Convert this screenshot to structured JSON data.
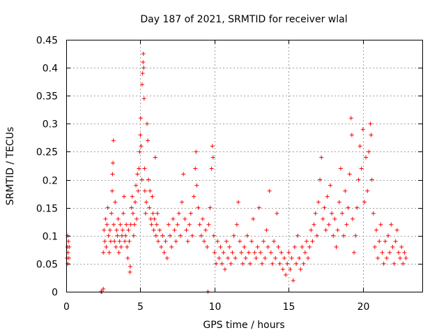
{
  "chart_data": {
    "type": "scatter",
    "title": "Day 187 of 2021, SRMTID for receiver wlal",
    "xlabel": "GPS time / hours",
    "ylabel": "SRMTID / TECUs",
    "xlim": [
      0,
      24
    ],
    "ylim": [
      0,
      0.45
    ],
    "xticks": [
      0,
      5,
      10,
      15,
      20
    ],
    "xtick_labels": [
      "0",
      "5",
      "10",
      "15",
      "20"
    ],
    "yticks": [
      0,
      0.05,
      0.1,
      0.15,
      0.2,
      0.25,
      0.3,
      0.35,
      0.4,
      0.45
    ],
    "ytick_labels": [
      "0",
      "0.05",
      "0.1",
      "0.15",
      "0.2",
      "0.25",
      "0.3",
      "0.35",
      "0.4",
      "0.45"
    ],
    "grid": true,
    "marker": "+",
    "color": "#ff0000",
    "series": [
      {
        "name": "SRMTID",
        "points": [
          [
            0.05,
            0.06
          ],
          [
            0.08,
            0.08
          ],
          [
            0.1,
            0.1
          ],
          [
            0.12,
            0.07
          ],
          [
            0.15,
            0.09
          ],
          [
            0.18,
            0.06
          ],
          [
            0.2,
            0.08
          ],
          [
            0.1,
            0.05
          ],
          [
            2.35,
            0.0
          ],
          [
            2.4,
            0.0
          ],
          [
            2.5,
            0.005
          ],
          [
            2.5,
            0.07
          ],
          [
            2.55,
            0.11
          ],
          [
            2.6,
            0.09
          ],
          [
            2.65,
            0.13
          ],
          [
            2.7,
            0.08
          ],
          [
            2.75,
            0.12
          ],
          [
            2.8,
            0.15
          ],
          [
            2.85,
            0.1
          ],
          [
            2.9,
            0.07
          ],
          [
            2.95,
            0.11
          ],
          [
            3.0,
            0.09
          ],
          [
            3.05,
            0.14
          ],
          [
            3.1,
            0.18
          ],
          [
            3.12,
            0.21
          ],
          [
            3.15,
            0.23
          ],
          [
            3.18,
            0.27
          ],
          [
            3.2,
            0.12
          ],
          [
            3.25,
            0.09
          ],
          [
            3.3,
            0.16
          ],
          [
            3.35,
            0.08
          ],
          [
            3.4,
            0.11
          ],
          [
            3.45,
            0.1
          ],
          [
            3.5,
            0.13
          ],
          [
            3.55,
            0.07
          ],
          [
            3.6,
            0.09
          ],
          [
            3.65,
            0.12
          ],
          [
            3.7,
            0.08
          ],
          [
            3.75,
            0.1
          ],
          [
            3.8,
            0.11
          ],
          [
            3.85,
            0.14
          ],
          [
            3.9,
            0.17
          ],
          [
            3.95,
            0.09
          ],
          [
            4.0,
            0.1
          ],
          [
            4.05,
            0.12
          ],
          [
            4.1,
            0.08
          ],
          [
            4.15,
            0.06
          ],
          [
            4.2,
            0.11
          ],
          [
            4.25,
            0.09
          ],
          [
            4.3,
            0.035
          ],
          [
            4.32,
            0.045
          ],
          [
            4.35,
            0.12
          ],
          [
            4.4,
            0.15
          ],
          [
            4.45,
            0.17
          ],
          [
            4.5,
            0.14
          ],
          [
            4.55,
            0.1
          ],
          [
            4.6,
            0.12
          ],
          [
            4.65,
            0.16
          ],
          [
            4.7,
            0.19
          ],
          [
            4.75,
            0.13
          ],
          [
            4.8,
            0.21
          ],
          [
            4.85,
            0.18
          ],
          [
            4.9,
            0.22
          ],
          [
            4.95,
            0.25
          ],
          [
            5.0,
            0.28
          ],
          [
            5.02,
            0.31
          ],
          [
            5.05,
            0.26
          ],
          [
            5.1,
            0.2
          ],
          [
            5.12,
            0.37
          ],
          [
            5.15,
            0.39
          ],
          [
            5.18,
            0.41
          ],
          [
            5.2,
            0.425
          ],
          [
            5.22,
            0.4
          ],
          [
            5.25,
            0.345
          ],
          [
            5.28,
            0.22
          ],
          [
            5.3,
            0.18
          ],
          [
            5.35,
            0.14
          ],
          [
            5.4,
            0.16
          ],
          [
            5.45,
            0.3
          ],
          [
            5.5,
            0.27
          ],
          [
            5.55,
            0.2
          ],
          [
            5.6,
            0.15
          ],
          [
            5.65,
            0.18
          ],
          [
            5.7,
            0.13
          ],
          [
            5.75,
            0.12
          ],
          [
            5.8,
            0.17
          ],
          [
            5.85,
            0.14
          ],
          [
            5.9,
            0.11
          ],
          [
            5.95,
            0.13
          ],
          [
            6.0,
            0.24
          ],
          [
            6.05,
            0.1
          ],
          [
            6.1,
            0.12
          ],
          [
            6.15,
            0.14
          ],
          [
            6.2,
            0.09
          ],
          [
            6.3,
            0.11
          ],
          [
            6.4,
            0.08
          ],
          [
            6.5,
            0.1
          ],
          [
            6.6,
            0.07
          ],
          [
            6.7,
            0.09
          ],
          [
            6.8,
            0.06
          ],
          [
            6.9,
            0.12
          ],
          [
            7.0,
            0.1
          ],
          [
            7.1,
            0.08
          ],
          [
            7.2,
            0.13
          ],
          [
            7.3,
            0.11
          ],
          [
            7.4,
            0.09
          ],
          [
            7.5,
            0.12
          ],
          [
            7.6,
            0.14
          ],
          [
            7.7,
            0.1
          ],
          [
            7.8,
            0.16
          ],
          [
            7.9,
            0.21
          ],
          [
            8.0,
            0.13
          ],
          [
            8.1,
            0.11
          ],
          [
            8.2,
            0.09
          ],
          [
            8.3,
            0.12
          ],
          [
            8.4,
            0.14
          ],
          [
            8.5,
            0.1
          ],
          [
            8.6,
            0.17
          ],
          [
            8.7,
            0.22
          ],
          [
            8.75,
            0.25
          ],
          [
            8.8,
            0.19
          ],
          [
            8.9,
            0.15
          ],
          [
            9.0,
            0.12
          ],
          [
            9.1,
            0.1
          ],
          [
            9.2,
            0.13
          ],
          [
            9.3,
            0.09
          ],
          [
            9.4,
            0.11
          ],
          [
            9.5,
            0.08
          ],
          [
            9.55,
            0.0
          ],
          [
            9.6,
            0.12
          ],
          [
            9.7,
            0.15
          ],
          [
            9.8,
            0.22
          ],
          [
            9.85,
            0.26
          ],
          [
            9.9,
            0.24
          ],
          [
            9.95,
            0.1
          ],
          [
            10.0,
            0.07
          ],
          [
            10.1,
            0.05
          ],
          [
            10.2,
            0.09
          ],
          [
            10.3,
            0.06
          ],
          [
            10.4,
            0.08
          ],
          [
            10.5,
            0.05
          ],
          [
            10.6,
            0.07
          ],
          [
            10.7,
            0.04
          ],
          [
            10.8,
            0.09
          ],
          [
            10.9,
            0.06
          ],
          [
            11.0,
            0.08
          ],
          [
            11.1,
            0.05
          ],
          [
            11.2,
            0.07
          ],
          [
            11.3,
            0.1
          ],
          [
            11.4,
            0.06
          ],
          [
            11.5,
            0.12
          ],
          [
            11.6,
            0.16
          ],
          [
            11.7,
            0.09
          ],
          [
            11.8,
            0.07
          ],
          [
            11.9,
            0.05
          ],
          [
            12.0,
            0.08
          ],
          [
            12.1,
            0.06
          ],
          [
            12.2,
            0.1
          ],
          [
            12.3,
            0.07
          ],
          [
            12.4,
            0.05
          ],
          [
            12.5,
            0.09
          ],
          [
            12.6,
            0.13
          ],
          [
            12.7,
            0.07
          ],
          [
            12.8,
            0.06
          ],
          [
            12.9,
            0.08
          ],
          [
            13.0,
            0.15
          ],
          [
            13.1,
            0.07
          ],
          [
            13.2,
            0.05
          ],
          [
            13.3,
            0.09
          ],
          [
            13.4,
            0.06
          ],
          [
            13.5,
            0.11
          ],
          [
            13.6,
            0.08
          ],
          [
            13.7,
            0.18
          ],
          [
            13.8,
            0.07
          ],
          [
            13.9,
            0.05
          ],
          [
            14.0,
            0.09
          ],
          [
            14.1,
            0.06
          ],
          [
            14.2,
            0.14
          ],
          [
            14.3,
            0.08
          ],
          [
            14.4,
            0.05
          ],
          [
            14.5,
            0.07
          ],
          [
            14.6,
            0.04
          ],
          [
            14.7,
            0.06
          ],
          [
            14.8,
            0.03
          ],
          [
            14.9,
            0.05
          ],
          [
            15.0,
            0.07
          ],
          [
            15.1,
            0.04
          ],
          [
            15.2,
            0.06
          ],
          [
            15.3,
            0.02
          ],
          [
            15.4,
            0.08
          ],
          [
            15.5,
            0.05
          ],
          [
            15.6,
            0.1
          ],
          [
            15.7,
            0.06
          ],
          [
            15.8,
            0.04
          ],
          [
            15.9,
            0.08
          ],
          [
            16.0,
            0.05
          ],
          [
            16.1,
            0.07
          ],
          [
            16.2,
            0.09
          ],
          [
            16.3,
            0.06
          ],
          [
            16.4,
            0.08
          ],
          [
            16.5,
            0.11
          ],
          [
            16.6,
            0.09
          ],
          [
            16.7,
            0.12
          ],
          [
            16.8,
            0.14
          ],
          [
            16.9,
            0.1
          ],
          [
            17.0,
            0.16
          ],
          [
            17.1,
            0.2
          ],
          [
            17.2,
            0.24
          ],
          [
            17.3,
            0.13
          ],
          [
            17.4,
            0.15
          ],
          [
            17.5,
            0.11
          ],
          [
            17.6,
            0.17
          ],
          [
            17.7,
            0.12
          ],
          [
            17.8,
            0.19
          ],
          [
            17.9,
            0.14
          ],
          [
            18.0,
            0.1
          ],
          [
            18.1,
            0.13
          ],
          [
            18.2,
            0.08
          ],
          [
            18.3,
            0.11
          ],
          [
            18.4,
            0.16
          ],
          [
            18.5,
            0.22
          ],
          [
            18.6,
            0.14
          ],
          [
            18.7,
            0.1
          ],
          [
            18.8,
            0.18
          ],
          [
            18.9,
            0.12
          ],
          [
            19.0,
            0.15
          ],
          [
            19.1,
            0.21
          ],
          [
            19.2,
            0.31
          ],
          [
            19.25,
            0.28
          ],
          [
            19.3,
            0.13
          ],
          [
            19.4,
            0.07
          ],
          [
            19.5,
            0.1
          ],
          [
            19.6,
            0.15
          ],
          [
            19.7,
            0.2
          ],
          [
            19.8,
            0.26
          ],
          [
            19.9,
            0.22
          ],
          [
            20.0,
            0.29
          ],
          [
            20.1,
            0.16
          ],
          [
            20.2,
            0.24
          ],
          [
            20.3,
            0.18
          ],
          [
            20.4,
            0.25
          ],
          [
            20.5,
            0.3
          ],
          [
            20.55,
            0.28
          ],
          [
            20.6,
            0.2
          ],
          [
            20.7,
            0.14
          ],
          [
            20.8,
            0.08
          ],
          [
            20.9,
            0.11
          ],
          [
            21.0,
            0.06
          ],
          [
            21.1,
            0.09
          ],
          [
            21.2,
            0.12
          ],
          [
            21.3,
            0.07
          ],
          [
            21.4,
            0.05
          ],
          [
            21.5,
            0.09
          ],
          [
            21.6,
            0.06
          ],
          [
            21.7,
            0.1
          ],
          [
            21.8,
            0.07
          ],
          [
            21.9,
            0.12
          ],
          [
            22.0,
            0.08
          ],
          [
            22.1,
            0.05
          ],
          [
            22.2,
            0.09
          ],
          [
            22.3,
            0.11
          ],
          [
            22.4,
            0.07
          ],
          [
            22.5,
            0.06
          ],
          [
            22.6,
            0.08
          ],
          [
            22.7,
            0.05
          ],
          [
            22.8,
            0.07
          ],
          [
            22.9,
            0.06
          ]
        ]
      }
    ]
  }
}
